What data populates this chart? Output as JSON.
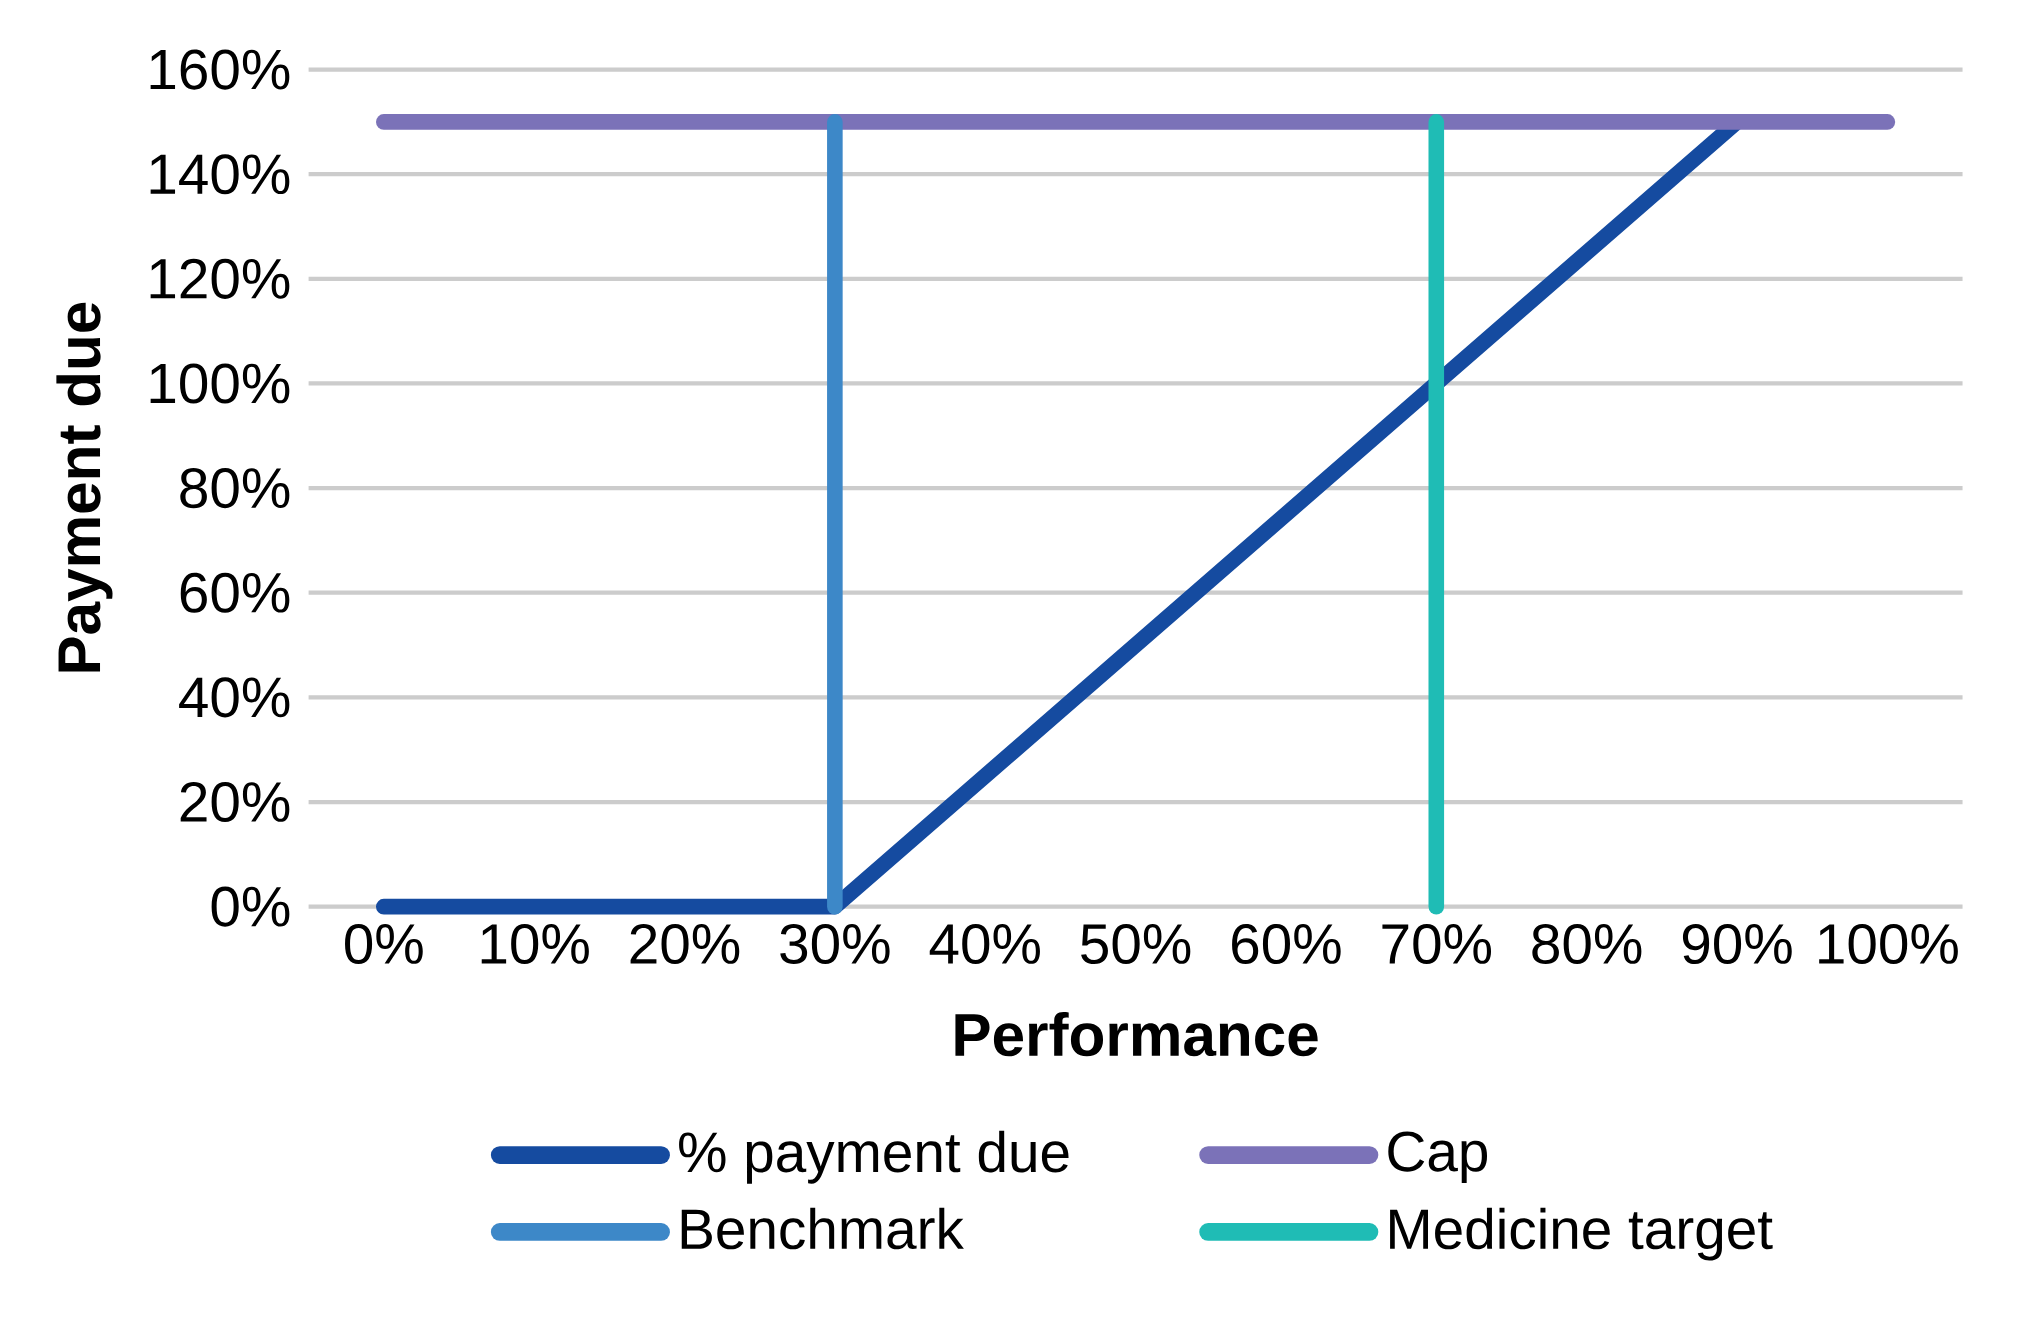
{
  "chart_data": {
    "type": "line",
    "xlabel": "Performance",
    "ylabel": "Payment due",
    "xlim": [
      -5,
      105
    ],
    "ylim": [
      0,
      160
    ],
    "xticks": [
      {
        "value": 0,
        "label": "0%"
      },
      {
        "value": 10,
        "label": "10%"
      },
      {
        "value": 20,
        "label": "20%"
      },
      {
        "value": 30,
        "label": "30%"
      },
      {
        "value": 40,
        "label": "40%"
      },
      {
        "value": 50,
        "label": "50%"
      },
      {
        "value": 60,
        "label": "60%"
      },
      {
        "value": 70,
        "label": "70%"
      },
      {
        "value": 80,
        "label": "80%"
      },
      {
        "value": 90,
        "label": "90%"
      },
      {
        "value": 100,
        "label": "100%"
      }
    ],
    "yticks": [
      {
        "value": 0,
        "label": "0%"
      },
      {
        "value": 20,
        "label": "20%"
      },
      {
        "value": 40,
        "label": "40%"
      },
      {
        "value": 60,
        "label": "60%"
      },
      {
        "value": 80,
        "label": "80%"
      },
      {
        "value": 100,
        "label": "100%"
      },
      {
        "value": 120,
        "label": "120%"
      },
      {
        "value": 140,
        "label": "140%"
      },
      {
        "value": 160,
        "label": "160%"
      }
    ],
    "series": [
      {
        "name": "% payment due",
        "color": "#154ba0",
        "x": [
          0,
          30,
          90
        ],
        "values": [
          0,
          0,
          150
        ]
      },
      {
        "name": "Cap",
        "color": "#7b72b8",
        "x": [
          0,
          100
        ],
        "values": [
          150,
          150
        ]
      },
      {
        "name": "Benchmark",
        "color": "#3d88c8",
        "x": [
          30,
          30
        ],
        "values": [
          0,
          150
        ]
      },
      {
        "name": "Medicine target",
        "color": "#1fbcb5",
        "x": [
          70,
          70
        ],
        "values": [
          0,
          150
        ]
      }
    ],
    "grid": "y",
    "legend": "bottom",
    "marker": "none",
    "line_style": "solid"
  }
}
